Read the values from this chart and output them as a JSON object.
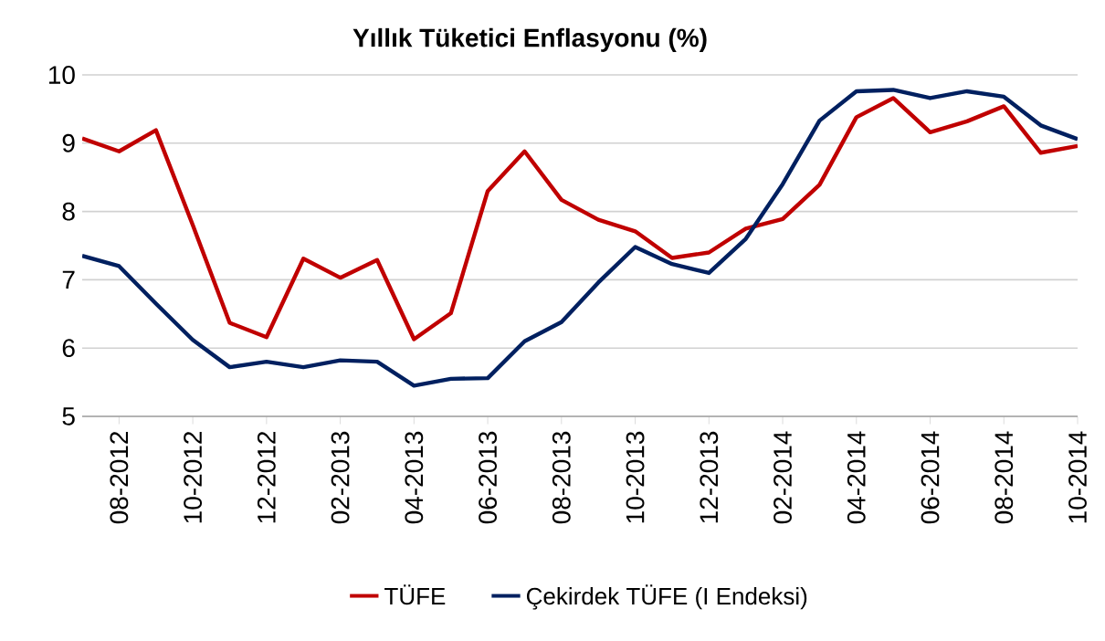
{
  "chart_data": {
    "type": "line",
    "title": "Yıllık  Tüketici Enflasyonu (%)",
    "categories": [
      null,
      "08-2012",
      null,
      "10-2012",
      null,
      "12-2012",
      null,
      "02-2013",
      null,
      "04-2013",
      null,
      "06-2013",
      null,
      "08-2013",
      null,
      "10-2013",
      null,
      "12-2013",
      null,
      "02-2014",
      null,
      "04-2014",
      null,
      "06-2014",
      null,
      "08-2014",
      null,
      "10-2014"
    ],
    "series": [
      {
        "name": "TÜFE",
        "color": "#c00000",
        "values": [
          9.07,
          8.88,
          9.19,
          7.8,
          6.37,
          6.16,
          7.31,
          7.03,
          7.29,
          6.13,
          6.51,
          8.3,
          8.88,
          8.17,
          7.88,
          7.71,
          7.32,
          7.4,
          7.75,
          7.89,
          8.39,
          9.38,
          9.66,
          9.16,
          9.32,
          9.54,
          8.86,
          8.96
        ]
      },
      {
        "name": "Çekirdek TÜFE (I Endeksi)",
        "color": "#002060",
        "values": [
          7.35,
          7.2,
          6.65,
          6.12,
          5.72,
          5.8,
          5.72,
          5.82,
          5.8,
          5.45,
          5.55,
          5.56,
          6.1,
          6.38,
          6.96,
          7.48,
          7.23,
          7.1,
          7.6,
          8.4,
          9.33,
          9.76,
          9.78,
          9.66,
          9.76,
          9.68,
          9.26,
          9.06
        ]
      }
    ],
    "ylim": [
      5,
      10
    ],
    "yticks": [
      5,
      6,
      7,
      8,
      9,
      10
    ],
    "grid": "y",
    "legend": "bottom",
    "marker": "none",
    "line_style": "solid"
  }
}
